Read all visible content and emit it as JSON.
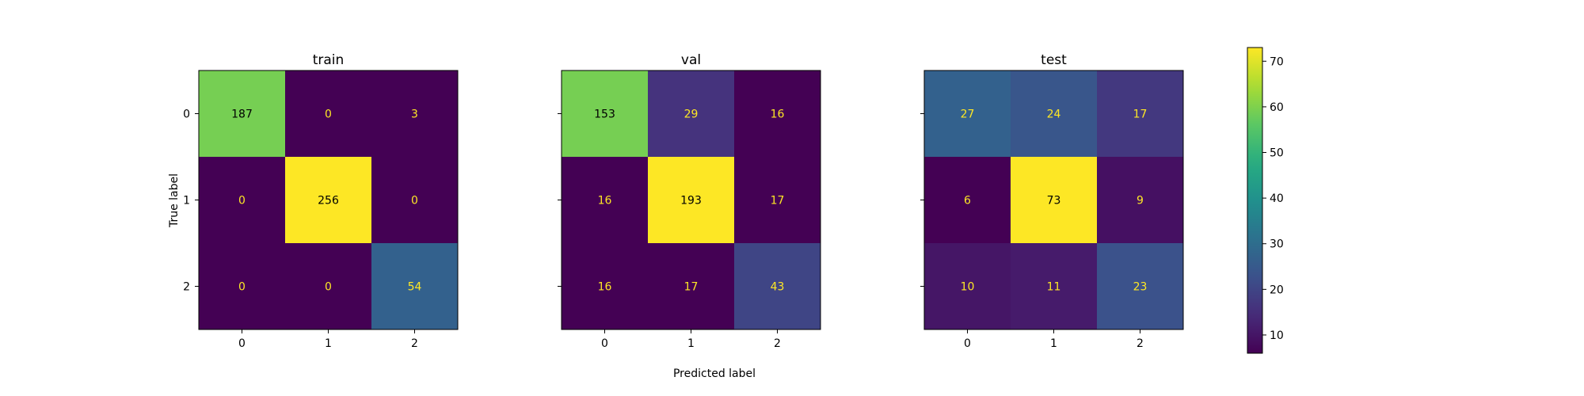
{
  "chart_data": {
    "type": "heatmap",
    "colormap": "viridis",
    "color_range": [
      6,
      73
    ],
    "xlabel": "Predicted label",
    "ylabel": "True label",
    "class_labels": [
      "0",
      "1",
      "2"
    ],
    "panels": [
      {
        "title": "train",
        "matrix": [
          [
            187,
            0,
            3
          ],
          [
            0,
            256,
            0
          ],
          [
            0,
            0,
            54
          ]
        ],
        "color_values": [
          [
            59,
            6,
            6
          ],
          [
            6,
            73,
            6
          ],
          [
            6,
            6,
            27
          ]
        ]
      },
      {
        "title": "val",
        "matrix": [
          [
            153,
            29,
            16
          ],
          [
            16,
            193,
            17
          ],
          [
            16,
            17,
            43
          ]
        ],
        "color_values": [
          [
            59,
            16,
            6
          ],
          [
            6,
            73,
            6
          ],
          [
            6,
            6,
            20
          ]
        ]
      },
      {
        "title": "test",
        "matrix": [
          [
            27,
            24,
            17
          ],
          [
            6,
            73,
            9
          ],
          [
            10,
            11,
            23
          ]
        ],
        "color_values": [
          [
            27,
            24,
            17
          ],
          [
            6,
            73,
            9
          ],
          [
            10,
            11,
            23
          ]
        ]
      }
    ],
    "colorbar": {
      "ticks": [
        10,
        20,
        30,
        40,
        50,
        60,
        70
      ]
    },
    "text_colors": {
      "dark": "#000000",
      "light": "#fde725"
    }
  }
}
